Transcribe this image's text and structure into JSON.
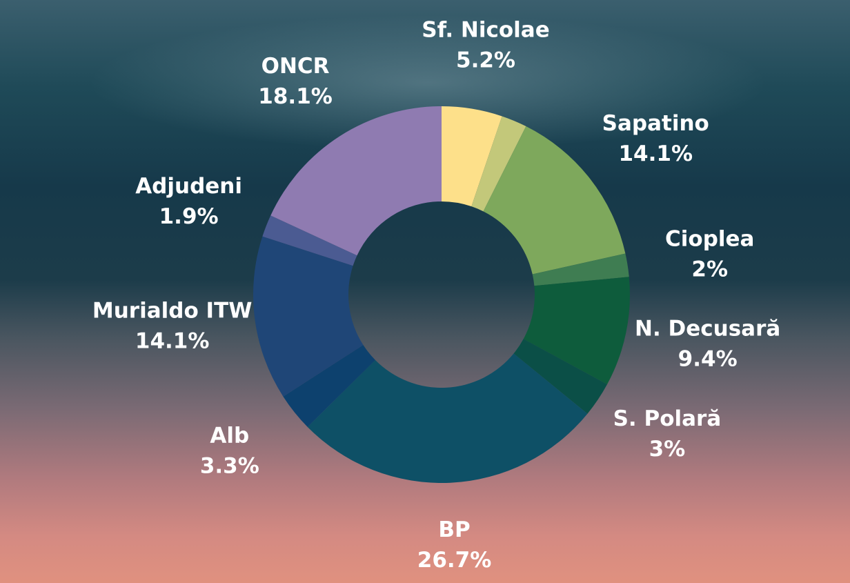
{
  "chart_data": {
    "type": "donut",
    "categories": [
      "Sf. Nicolae",
      null,
      "Sapatino",
      "Cioplea",
      "N. Decusară",
      "S. Polară",
      "BP",
      "Alb",
      "Murialdo ITW",
      "Adjudeni",
      "ONCR"
    ],
    "values": [
      5.2,
      2.2,
      14.1,
      2,
      9.4,
      3,
      26.7,
      3.3,
      14.1,
      1.9,
      18.1
    ],
    "value_labels": [
      "5.2%",
      null,
      "14.1%",
      "2%",
      "9.4%",
      "3%",
      "26.7%",
      "3.3%",
      "14.1%",
      "1.9%",
      "18.1%"
    ],
    "colors": [
      "#fde08a",
      "#c3c87a",
      "#7ea85c",
      "#3f7d52",
      "#0e5c3c",
      "#0b4f47",
      "#0e5066",
      "#0d416e",
      "#1f4677",
      "#4b5b92",
      "#8f7bb1"
    ]
  }
}
